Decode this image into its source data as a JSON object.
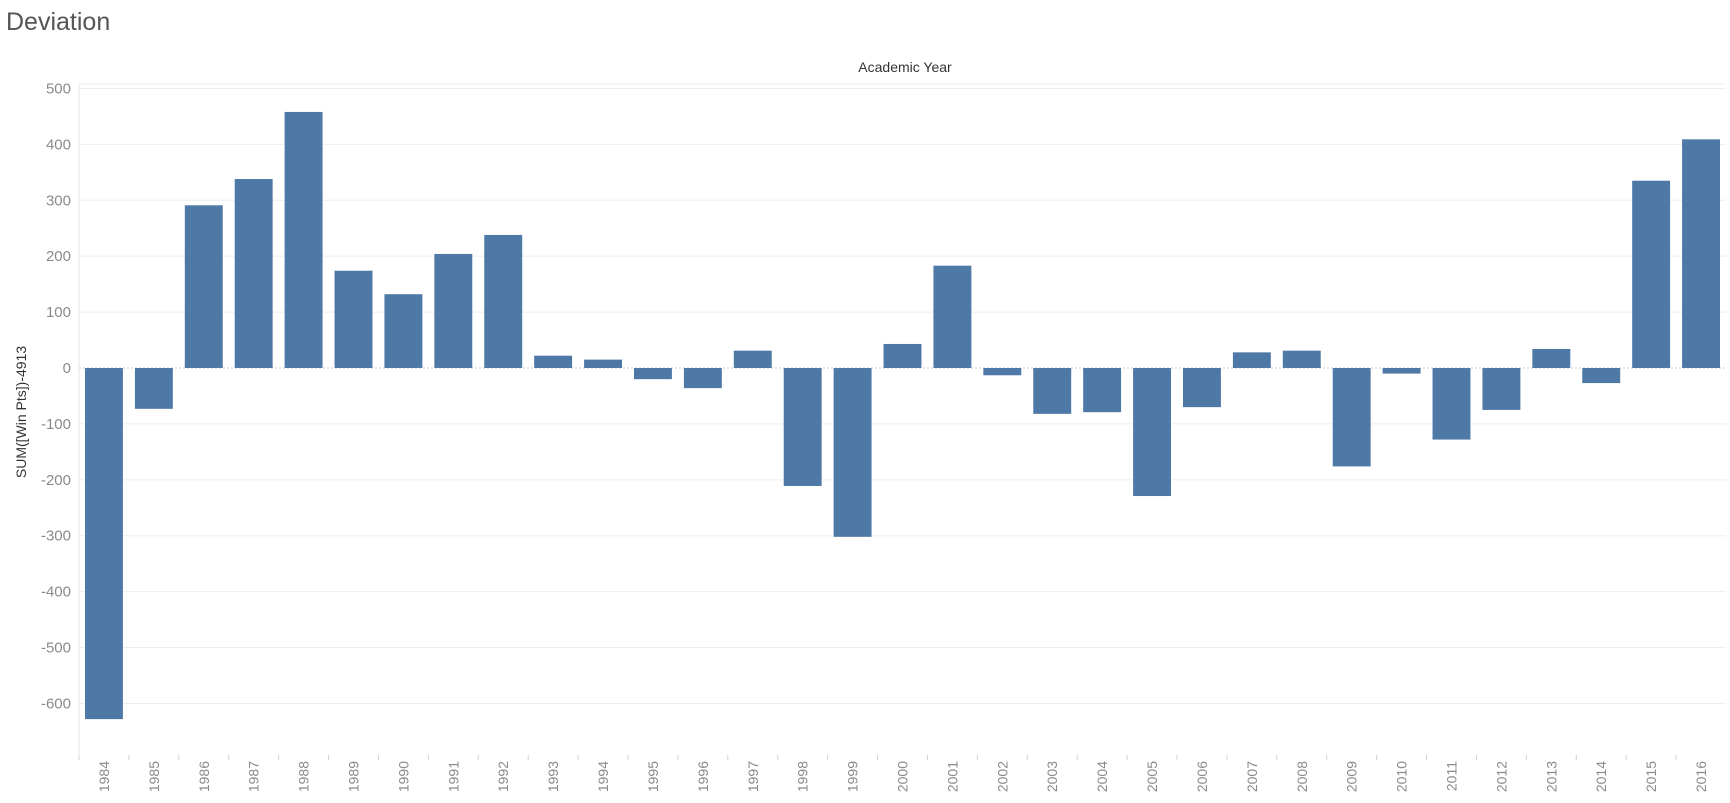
{
  "page": {
    "title": "Deviation"
  },
  "chart_data": {
    "type": "bar",
    "title": "Academic Year",
    "xlabel": "",
    "ylabel": "SUM([Win Pts])-4913",
    "ylim": [
      -680,
      510
    ],
    "yticks": [
      500,
      400,
      300,
      200,
      100,
      0,
      -100,
      -200,
      -300,
      -400,
      -500,
      -600
    ],
    "grid": true,
    "color": "#4e79a7",
    "categories": [
      "1984",
      "1985",
      "1986",
      "1987",
      "1988",
      "1989",
      "1990",
      "1991",
      "1992",
      "1993",
      "1994",
      "1995",
      "1996",
      "1997",
      "1998",
      "1999",
      "2000",
      "2001",
      "2002",
      "2003",
      "2004",
      "2005",
      "2006",
      "2007",
      "2008",
      "2009",
      "2010",
      "2011",
      "2012",
      "2013",
      "2014",
      "2015",
      "2016"
    ],
    "values": [
      -628,
      -73,
      291,
      338,
      458,
      174,
      132,
      204,
      238,
      22,
      15,
      -20,
      -36,
      31,
      -211,
      -302,
      43,
      183,
      -13,
      -82,
      -79,
      -229,
      -70,
      28,
      31,
      -176,
      -10,
      -128,
      -75,
      34,
      -27,
      335,
      409
    ]
  }
}
